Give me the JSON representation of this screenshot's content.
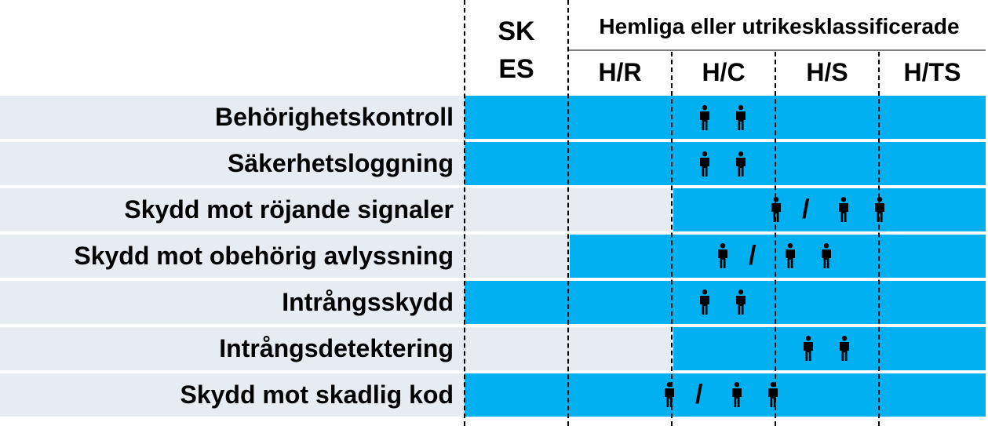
{
  "header": {
    "skes_line1": "SK",
    "skes_line2": "ES",
    "group": "Hemliga eller utrikesklassificerade",
    "levels": [
      "H/R",
      "H/C",
      "H/S",
      "H/TS"
    ]
  },
  "colors": {
    "bar": "#00b0f0",
    "row_background": "#e7ebf2"
  },
  "rows": [
    {
      "label": "Behörighetskontroll",
      "coverage_from": "SKES",
      "guards": "person-icon person-icon"
    },
    {
      "label": "Säkerhetsloggning",
      "coverage_from": "SKES",
      "guards": "person-icon person-icon"
    },
    {
      "label": "Skydd mot röjande signaler",
      "coverage_from": "H/C",
      "guards": "person-icon / person-icon person-icon",
      "slash": "/"
    },
    {
      "label": "Skydd mot obehörig avlyssning",
      "coverage_from": "H/R",
      "guards": "person-icon / person-icon person-icon",
      "slash": "/"
    },
    {
      "label": "Intrångsskydd",
      "coverage_from": "SKES",
      "guards": "person-icon person-icon"
    },
    {
      "label": "Intrångsdetektering",
      "coverage_from": "H/C",
      "guards": "person-icon person-icon"
    },
    {
      "label": "Skydd mot skadlig kod",
      "coverage_from": "SKES",
      "guards": "person-icon / person-icon person-icon",
      "slash": "/"
    }
  ]
}
